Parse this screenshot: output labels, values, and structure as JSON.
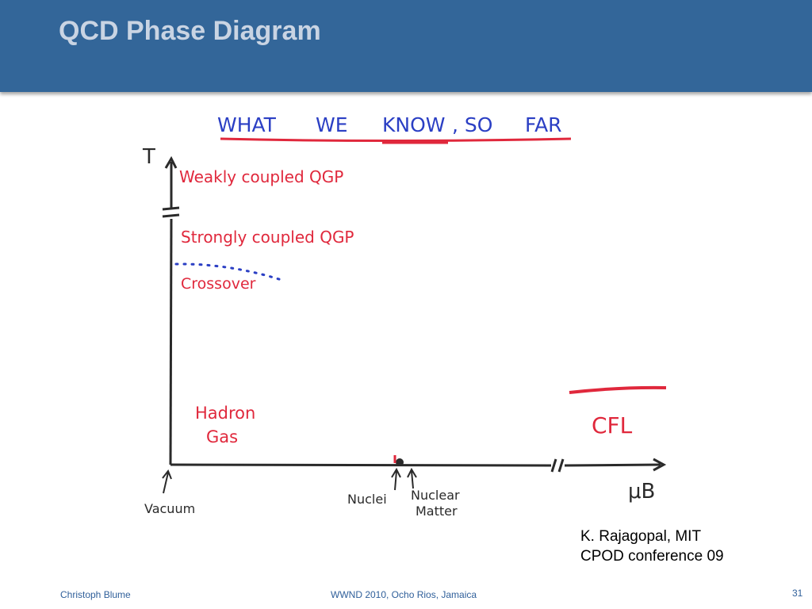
{
  "slide": {
    "title": "QCD Phase Diagram",
    "footer_author": "Christoph Blume",
    "footer_event": "WWND 2010, Ocho Rios, Jamaica",
    "page_number": "31",
    "citation_line1": "K. Rajagopal, MIT",
    "citation_line2": "CPOD conference 09"
  },
  "diagram": {
    "heading_parts": [
      "WHAT",
      "WE",
      "KNOW",
      ", SO",
      "FAR"
    ],
    "y_axis_label": "T",
    "x_axis_label": "μB",
    "regions": {
      "weak": "Weakly coupled QGP",
      "strong": "Strongly coupled QGP",
      "crossover": "Crossover",
      "hadron_line1": "Hadron",
      "hadron_line2": "Gas",
      "cfl": "CFL"
    },
    "markers": {
      "vacuum": "Vacuum",
      "nuclei": "Nuclei",
      "nuclear_line1": "Nuclear",
      "nuclear_line2": "Matter"
    },
    "colors": {
      "header_bg": "#336699",
      "title_text": "#c9d4e3",
      "ink_blue": "#2b3fc4",
      "ink_red": "#e0283c",
      "ink_axis": "#2a2a2a",
      "footer_text": "#2f5f9a"
    }
  }
}
